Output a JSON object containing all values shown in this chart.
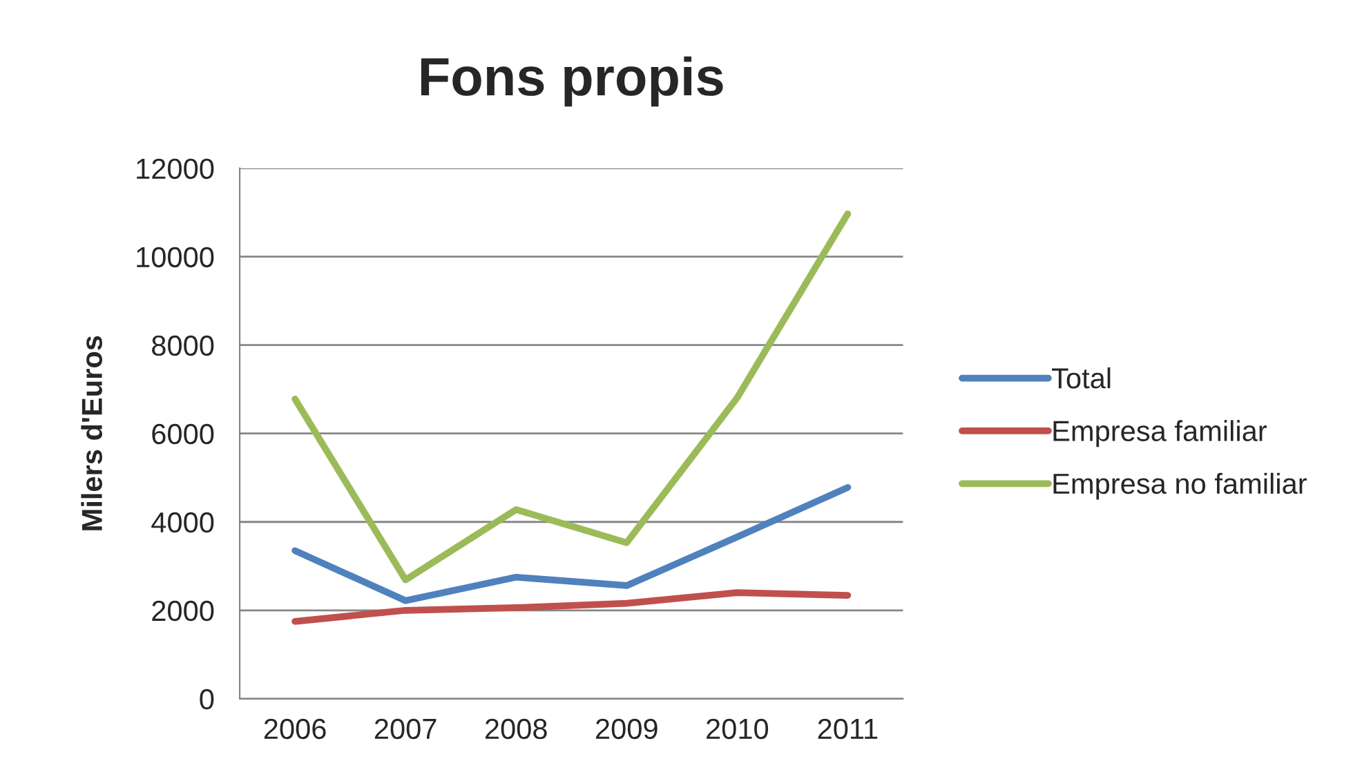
{
  "chart_data": {
    "type": "line",
    "title": "Fons propis",
    "ylabel": "Milers d'Euros",
    "categories": [
      "2006",
      "2007",
      "2008",
      "2009",
      "2010",
      "2011"
    ],
    "series": [
      {
        "name": "Total",
        "color": "#4f81bd",
        "values": [
          3350,
          2220,
          2750,
          2560,
          3660,
          4780
        ]
      },
      {
        "name": "Empresa familiar",
        "color": "#c0504d",
        "values": [
          1750,
          2000,
          2060,
          2160,
          2400,
          2340
        ]
      },
      {
        "name": "Empresa no familiar",
        "color": "#9bbb59",
        "values": [
          6780,
          2690,
          4280,
          3530,
          6810,
          10970
        ]
      }
    ],
    "ylim": [
      0,
      12000
    ],
    "yticks": [
      0,
      2000,
      4000,
      6000,
      8000,
      10000,
      12000
    ],
    "grid": "y",
    "legend": "right"
  }
}
